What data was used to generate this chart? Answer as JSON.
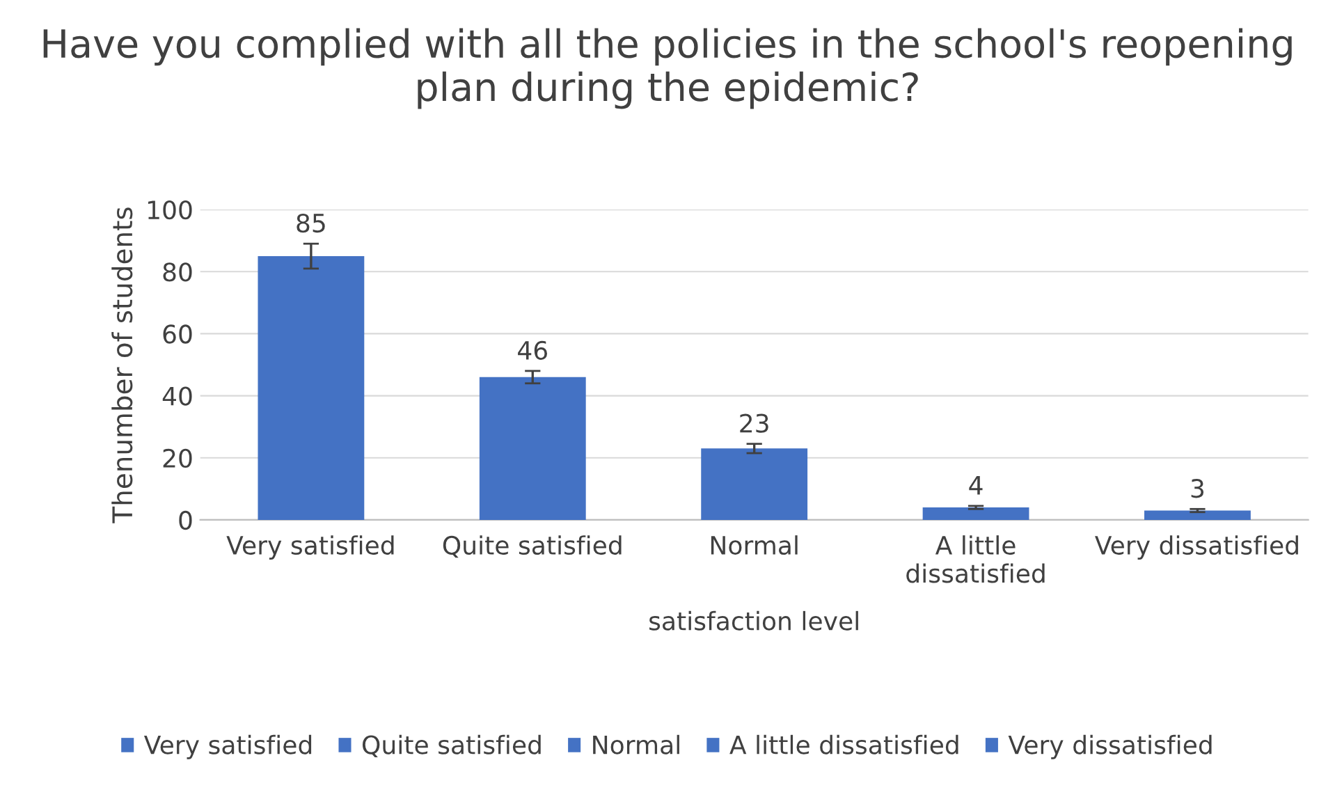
{
  "chart_data": {
    "type": "bar",
    "title": "Have you complied with all the policies in the school's reopening plan during the epidemic?",
    "xlabel": "satisfaction level",
    "ylabel": "Thenumber of students",
    "categories": [
      "Very satisfied",
      "Quite satisfied",
      "Normal",
      "A little dissatisfied",
      "Very dissatisfied"
    ],
    "series": [
      {
        "name": "Very satisfied",
        "color": "#4472c4",
        "values": [
          85,
          null,
          null,
          null,
          null
        ],
        "errors": [
          4,
          null,
          null,
          null,
          null
        ]
      },
      {
        "name": "Quite satisfied",
        "color": "#4472c4",
        "values": [
          null,
          46,
          null,
          null,
          null
        ],
        "errors": [
          null,
          2,
          null,
          null,
          null
        ]
      },
      {
        "name": "Normal",
        "color": "#4472c4",
        "values": [
          null,
          null,
          23,
          null,
          null
        ],
        "errors": [
          null,
          null,
          1.5,
          null,
          null
        ]
      },
      {
        "name": "A little dissatisfied",
        "color": "#4472c4",
        "values": [
          null,
          null,
          null,
          4,
          null
        ],
        "errors": [
          null,
          null,
          null,
          0.5,
          null
        ]
      },
      {
        "name": "Very dissatisfied",
        "color": "#4472c4",
        "values": [
          null,
          null,
          null,
          null,
          3
        ],
        "errors": [
          null,
          null,
          null,
          null,
          0.5
        ]
      }
    ],
    "ylim": [
      0,
      100
    ],
    "yticks": [
      0,
      20,
      40,
      60,
      80,
      100
    ],
    "grid": "y",
    "data_labels": true,
    "legend": "bottom"
  }
}
